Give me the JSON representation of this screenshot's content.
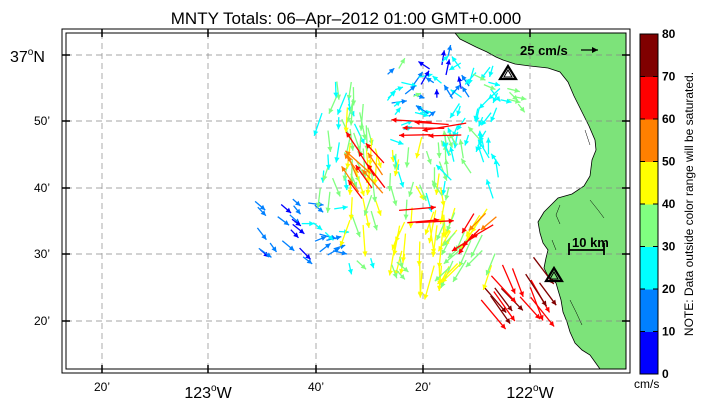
{
  "title": "MNTY Totals: 06–Apr–2012 01:00 GMT+0.000",
  "map": {
    "lat_labels": [
      "37",
      "50’",
      "40’",
      "30’",
      "20’"
    ],
    "lat_hemisphere": "N",
    "lon_labels": [
      "20’",
      "123",
      "40’",
      "20’",
      "122"
    ],
    "lon_hemisphere": "W",
    "degree_symbol": "o",
    "reference_vector_label": "25 cm/s",
    "scale_bar_label": "10 km",
    "land_color": "#7de37a",
    "ocean_color": "#ffffff",
    "grid": true
  },
  "colorbar": {
    "ticks": [
      "80",
      "70",
      "60",
      "50",
      "40",
      "30",
      "20",
      "10",
      "0"
    ],
    "unit_label": "cm/s",
    "note": "NOTE: Data outside color range will be saturated.",
    "colors": [
      "#0000ff",
      "#0080ff",
      "#00ffff",
      "#80ff80",
      "#ffff00",
      "#ff8000",
      "#ff0000",
      "#800000"
    ],
    "min": 0,
    "max": 80
  }
}
